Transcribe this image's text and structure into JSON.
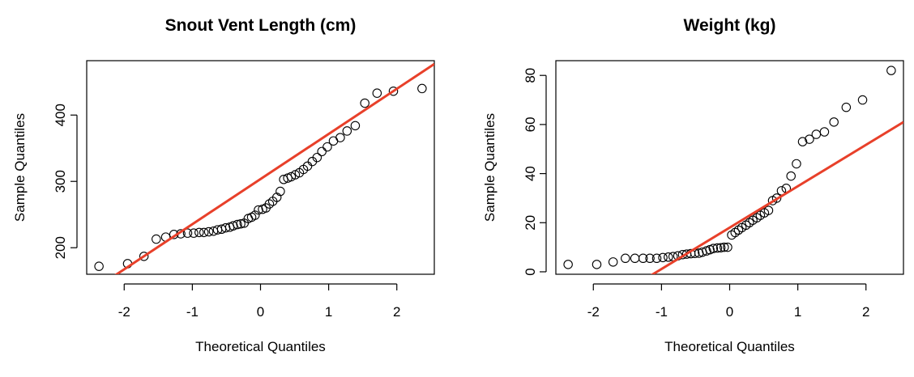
{
  "colors": {
    "line": "#e8402a",
    "point": "#000000"
  },
  "chart_data": [
    {
      "type": "scatter",
      "title": "Snout Vent Length (cm)",
      "xlabel": "Theoretical Quantiles",
      "ylabel": "Sample Quantiles",
      "xlim": [
        -2.55,
        2.55
      ],
      "ylim": [
        160,
        482
      ],
      "xticks": [
        -2,
        -1,
        0,
        1,
        2
      ],
      "yticks": [
        200,
        300,
        400
      ],
      "grid": false,
      "reference_line": {
        "x1": -2.55,
        "y1": 130,
        "x2": 2.55,
        "y2": 477
      },
      "points": [
        [
          -2.37,
          172
        ],
        [
          -1.95,
          176
        ],
        [
          -1.71,
          187
        ],
        [
          -1.53,
          213
        ],
        [
          -1.39,
          216
        ],
        [
          -1.27,
          220
        ],
        [
          -1.17,
          221
        ],
        [
          -1.07,
          222
        ],
        [
          -0.98,
          222
        ],
        [
          -0.9,
          223
        ],
        [
          -0.83,
          223
        ],
        [
          -0.76,
          224
        ],
        [
          -0.69,
          225
        ],
        [
          -0.63,
          227
        ],
        [
          -0.57,
          228
        ],
        [
          -0.51,
          230
        ],
        [
          -0.45,
          231
        ],
        [
          -0.4,
          233
        ],
        [
          -0.34,
          235
        ],
        [
          -0.29,
          236
        ],
        [
          -0.24,
          237
        ],
        [
          -0.18,
          244
        ],
        [
          -0.13,
          246
        ],
        [
          -0.08,
          249
        ],
        [
          -0.03,
          257
        ],
        [
          0.03,
          258
        ],
        [
          0.08,
          260
        ],
        [
          0.13,
          266
        ],
        [
          0.18,
          270
        ],
        [
          0.24,
          276
        ],
        [
          0.29,
          285
        ],
        [
          0.34,
          303
        ],
        [
          0.4,
          305
        ],
        [
          0.45,
          307
        ],
        [
          0.51,
          310
        ],
        [
          0.57,
          313
        ],
        [
          0.63,
          318
        ],
        [
          0.69,
          323
        ],
        [
          0.76,
          330
        ],
        [
          0.83,
          336
        ],
        [
          0.9,
          345
        ],
        [
          0.98,
          352
        ],
        [
          1.07,
          361
        ],
        [
          1.17,
          366
        ],
        [
          1.27,
          376
        ],
        [
          1.39,
          384
        ],
        [
          1.53,
          418
        ],
        [
          1.71,
          433
        ],
        [
          1.95,
          436
        ],
        [
          2.37,
          440
        ]
      ]
    },
    {
      "type": "scatter",
      "title": "Weight (kg)",
      "xlabel": "Theoretical Quantiles",
      "ylabel": "Sample Quantiles",
      "xlim": [
        -2.55,
        2.55
      ],
      "ylim": [
        -1,
        86
      ],
      "xticks": [
        -2,
        -1,
        0,
        1,
        2
      ],
      "yticks": [
        0,
        20,
        40,
        60,
        80
      ],
      "grid": false,
      "reference_line": {
        "x1": -2.55,
        "y1": -25,
        "x2": 2.55,
        "y2": 61
      },
      "points": [
        [
          -2.37,
          3
        ],
        [
          -1.95,
          3
        ],
        [
          -1.71,
          4
        ],
        [
          -1.53,
          5.5
        ],
        [
          -1.39,
          5.5
        ],
        [
          -1.27,
          5.5
        ],
        [
          -1.17,
          5.5
        ],
        [
          -1.07,
          5.5
        ],
        [
          -0.98,
          5.8
        ],
        [
          -0.9,
          6
        ],
        [
          -0.83,
          6.2
        ],
        [
          -0.76,
          6.5
        ],
        [
          -0.69,
          7
        ],
        [
          -0.63,
          7.2
        ],
        [
          -0.57,
          7.4
        ],
        [
          -0.51,
          7.5
        ],
        [
          -0.45,
          7.6
        ],
        [
          -0.4,
          8
        ],
        [
          -0.34,
          8.5
        ],
        [
          -0.29,
          9
        ],
        [
          -0.24,
          9.5
        ],
        [
          -0.18,
          9.7
        ],
        [
          -0.13,
          9.8
        ],
        [
          -0.08,
          10
        ],
        [
          -0.03,
          10
        ],
        [
          0.03,
          15
        ],
        [
          0.08,
          16
        ],
        [
          0.13,
          17
        ],
        [
          0.18,
          18
        ],
        [
          0.24,
          19
        ],
        [
          0.29,
          20
        ],
        [
          0.34,
          21
        ],
        [
          0.4,
          22
        ],
        [
          0.45,
          23
        ],
        [
          0.51,
          24
        ],
        [
          0.57,
          25
        ],
        [
          0.63,
          29
        ],
        [
          0.69,
          30
        ],
        [
          0.76,
          33
        ],
        [
          0.83,
          34
        ],
        [
          0.9,
          39
        ],
        [
          0.98,
          44
        ],
        [
          1.07,
          53
        ],
        [
          1.17,
          54
        ],
        [
          1.27,
          56
        ],
        [
          1.39,
          57
        ],
        [
          1.53,
          61
        ],
        [
          1.71,
          67
        ],
        [
          1.95,
          70
        ],
        [
          2.37,
          82
        ]
      ]
    }
  ]
}
